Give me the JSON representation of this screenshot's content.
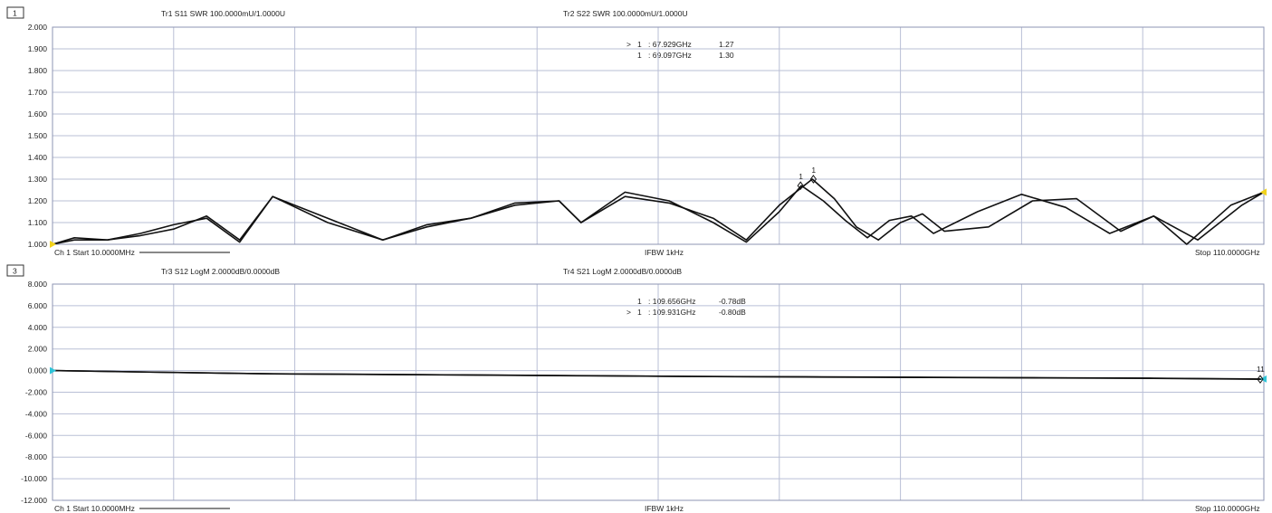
{
  "panels": [
    {
      "id": "1",
      "traces": [
        "Tr1 S11 SWR 100.0000mU/1.0000U",
        "Tr2 S22 SWR 100.0000mU/1.0000U"
      ],
      "yticks": [
        "2.000",
        "1.900",
        "1.800",
        "1.700",
        "1.600",
        "1.500",
        "1.400",
        "1.300",
        "1.200",
        "1.100",
        "1.000"
      ],
      "markers": [
        {
          "prefix": ">",
          "num": "1",
          "freq": ": 67.929GHz",
          "value": "1.27"
        },
        {
          "prefix": "",
          "num": "1",
          "freq": ": 69.097GHz",
          "value": "1.30"
        }
      ],
      "marker_tags": [
        "1",
        "1"
      ],
      "footer": {
        "start": "Ch 1 Start 10.0000MHz",
        "center": "IFBW 1kHz",
        "stop": "Stop 110.0000GHz"
      }
    },
    {
      "id": "3",
      "traces": [
        "Tr3 S12 LogM 2.0000dB/0.0000dB",
        "Tr4 S21 LogM 2.0000dB/0.0000dB"
      ],
      "yticks": [
        "8.000",
        "6.000",
        "4.000",
        "2.000",
        "0.000",
        "-2.000",
        "-4.000",
        "-6.000",
        "-8.000",
        "-10.000",
        "-12.000"
      ],
      "markers": [
        {
          "prefix": "",
          "num": "1",
          "freq": ": 109.656GHz",
          "value": "-0.78dB"
        },
        {
          "prefix": ">",
          "num": "1",
          "freq": ": 109.931GHz",
          "value": "-0.80dB"
        }
      ],
      "marker_tags": [
        "11"
      ],
      "footer": {
        "start": "Ch 1 Start 10.0000MHz",
        "center": "IFBW 1kHz",
        "stop": "Stop 110.0000GHz"
      }
    }
  ],
  "colors": {
    "trace": "#111111",
    "grid": "#b9bfd6",
    "start_marker_top": "#f2d21b",
    "start_marker_bottom": "#2ec4d8"
  },
  "chart_data": [
    {
      "type": "line",
      "xlim": [
        0.01,
        110
      ],
      "ylim": [
        1.0,
        2.0
      ],
      "series": [
        {
          "name": "Tr1 S11 SWR",
          "x": [
            0.01,
            2,
            5,
            8,
            11,
            14,
            17,
            20,
            25,
            30,
            34,
            38,
            42,
            46,
            48,
            52,
            56,
            60,
            63,
            66,
            68,
            70,
            72,
            74,
            76,
            78,
            80,
            84,
            88,
            92,
            96,
            100,
            104,
            108,
            110
          ],
          "values": [
            1.0,
            1.03,
            1.02,
            1.05,
            1.09,
            1.12,
            1.01,
            1.22,
            1.1,
            1.02,
            1.09,
            1.12,
            1.19,
            1.2,
            1.1,
            1.24,
            1.2,
            1.1,
            1.01,
            1.15,
            1.27,
            1.2,
            1.11,
            1.03,
            1.11,
            1.13,
            1.05,
            1.15,
            1.23,
            1.17,
            1.05,
            1.13,
            1.02,
            1.18,
            1.24
          ]
        },
        {
          "name": "Tr2 S22 SWR",
          "x": [
            0.01,
            2,
            5,
            8,
            11,
            14,
            17,
            20,
            25,
            30,
            34,
            38,
            42,
            46,
            48,
            52,
            56,
            60,
            63,
            66,
            69,
            71,
            73,
            75,
            77,
            79,
            81,
            85,
            89,
            93,
            97,
            100,
            103,
            107,
            110
          ],
          "values": [
            1.0,
            1.02,
            1.02,
            1.04,
            1.07,
            1.13,
            1.02,
            1.22,
            1.12,
            1.02,
            1.08,
            1.12,
            1.18,
            1.2,
            1.1,
            1.22,
            1.19,
            1.12,
            1.02,
            1.18,
            1.3,
            1.21,
            1.08,
            1.02,
            1.1,
            1.14,
            1.06,
            1.08,
            1.2,
            1.21,
            1.06,
            1.13,
            1.0,
            1.18,
            1.24
          ]
        }
      ]
    },
    {
      "type": "line",
      "xlim": [
        0.01,
        110
      ],
      "ylim": [
        -12,
        8
      ],
      "series": [
        {
          "name": "Tr3 S12 LogM",
          "x": [
            0.01,
            10,
            20,
            30,
            40,
            50,
            60,
            70,
            80,
            90,
            100,
            110
          ],
          "values": [
            0.0,
            -0.15,
            -0.3,
            -0.35,
            -0.42,
            -0.48,
            -0.55,
            -0.58,
            -0.62,
            -0.66,
            -0.7,
            -0.78
          ]
        },
        {
          "name": "Tr4 S21 LogM",
          "x": [
            0.01,
            10,
            20,
            30,
            40,
            50,
            60,
            70,
            80,
            90,
            100,
            110
          ],
          "values": [
            0.0,
            -0.16,
            -0.3,
            -0.36,
            -0.43,
            -0.49,
            -0.55,
            -0.6,
            -0.64,
            -0.68,
            -0.72,
            -0.8
          ]
        }
      ]
    }
  ]
}
